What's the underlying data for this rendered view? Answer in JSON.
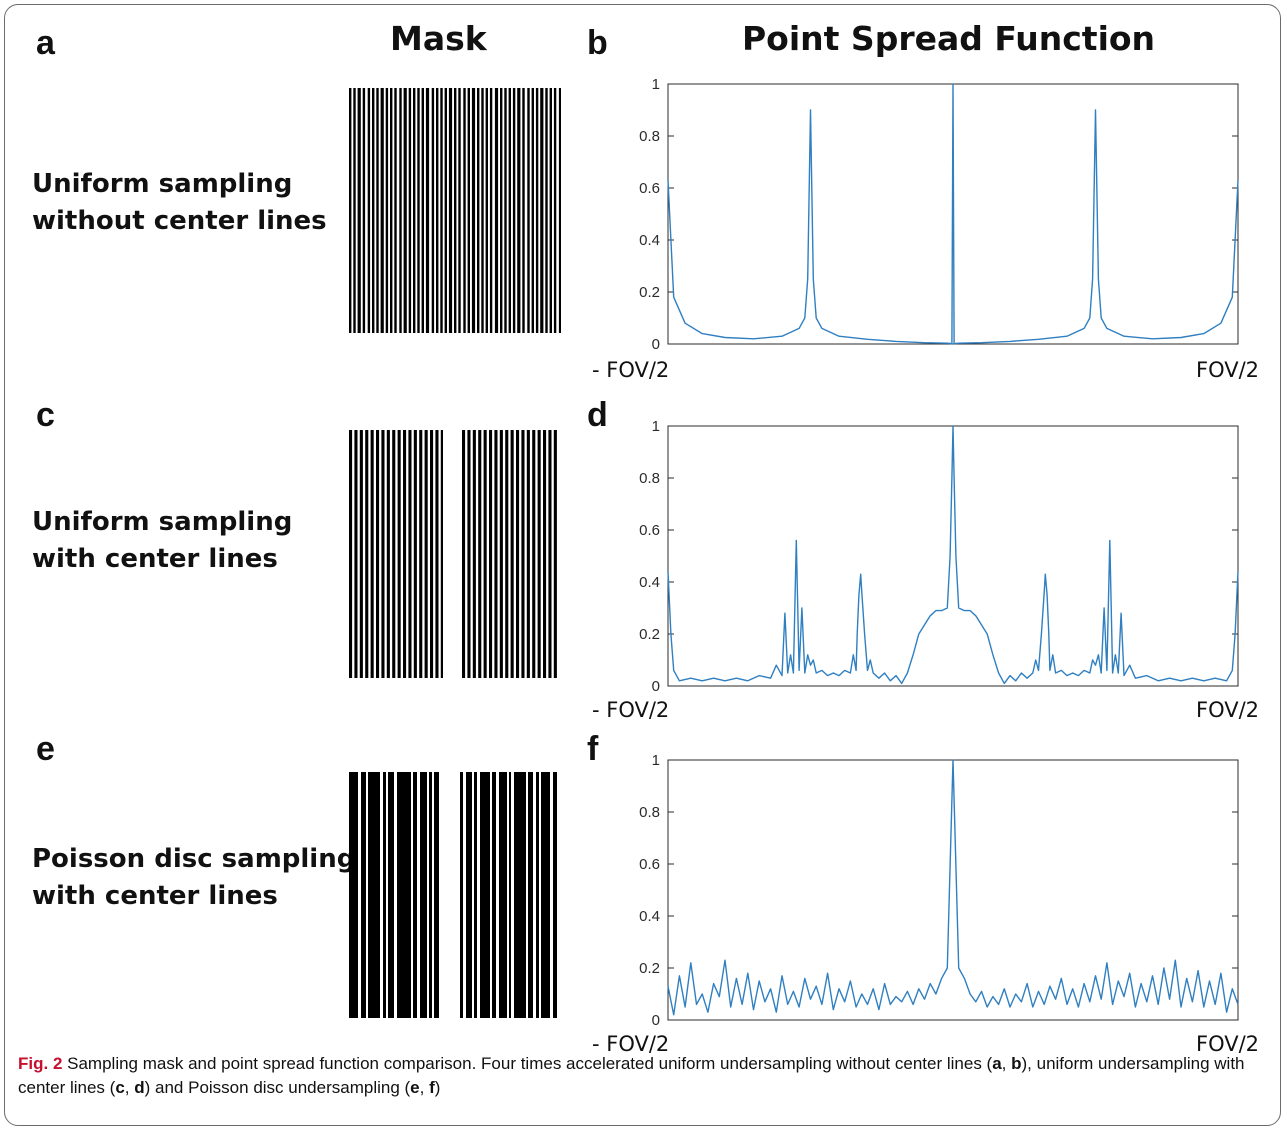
{
  "figure": {
    "column_headers": {
      "mask": "Mask",
      "psf": "Point Spread Function"
    },
    "panel_letters": [
      "a",
      "b",
      "c",
      "d",
      "e",
      "f"
    ],
    "rows": [
      {
        "label_line1": "Uniform sampling",
        "label_line2": "without center lines"
      },
      {
        "label_line1": "Uniform sampling",
        "label_line2": "with center lines"
      },
      {
        "label_line1": "Poisson disc sampling",
        "label_line2": "with center lines"
      }
    ],
    "x_left_label": "- FOV/2",
    "x_right_label": "FOV/2",
    "line_color": "#2f7fc1"
  },
  "caption": {
    "fig_label": "Fig. 2",
    "text_1": " Sampling mask and point spread function comparison. Four times accelerated uniform undersampling without center lines (",
    "a": "a",
    "sep1": ", ",
    "b": "b",
    "text_2": "), uniform undersampling with center lines (",
    "c": "c",
    "sep2": ", ",
    "d": "d",
    "text_3": ") and Poisson disc undersampling (",
    "e": "e",
    "sep3": ", ",
    "f": "f",
    "text_4": ")"
  },
  "chart_data": [
    {
      "type": "line",
      "panel": "b",
      "xlim": [
        -0.5,
        0.5
      ],
      "ylim": [
        0,
        1
      ],
      "yticks": [
        0,
        0.2,
        0.4,
        0.6,
        0.8,
        1
      ],
      "ytick_labels": [
        "0",
        "0.2",
        "0.4",
        "0.6",
        "0.8",
        "1"
      ],
      "series": [
        {
          "x": [
            -0.5,
            -0.49,
            -0.47,
            -0.44,
            -0.4,
            -0.35,
            -0.3,
            -0.27,
            -0.26,
            -0.255,
            -0.25,
            -0.245,
            -0.24,
            -0.23,
            -0.2,
            -0.15,
            -0.1,
            -0.05,
            -0.01,
            -0.004,
            -0.002,
            0,
            0.002,
            0.004,
            0.01,
            0.05,
            0.1,
            0.15,
            0.2,
            0.23,
            0.24,
            0.245,
            0.25,
            0.255,
            0.26,
            0.27,
            0.3,
            0.35,
            0.4,
            0.44,
            0.47,
            0.49,
            0.5
          ],
          "y": [
            0.63,
            0.18,
            0.08,
            0.04,
            0.025,
            0.02,
            0.03,
            0.06,
            0.1,
            0.25,
            0.9,
            0.25,
            0.1,
            0.06,
            0.03,
            0.018,
            0.01,
            0.005,
            0.003,
            0.002,
            0,
            1,
            0,
            0.002,
            0.003,
            0.005,
            0.01,
            0.018,
            0.03,
            0.06,
            0.1,
            0.25,
            0.9,
            0.25,
            0.1,
            0.06,
            0.03,
            0.02,
            0.025,
            0.04,
            0.08,
            0.18,
            0.63
          ]
        }
      ]
    },
    {
      "type": "line",
      "panel": "d",
      "xlim": [
        -0.5,
        0.5
      ],
      "ylim": [
        0,
        1
      ],
      "yticks": [
        0,
        0.2,
        0.4,
        0.6,
        0.8,
        1
      ],
      "ytick_labels": [
        "0",
        "0.2",
        "0.4",
        "0.6",
        "0.8",
        "1"
      ],
      "series": [
        {
          "x": [
            -0.5,
            -0.495,
            -0.49,
            -0.48,
            -0.46,
            -0.44,
            -0.42,
            -0.4,
            -0.38,
            -0.36,
            -0.34,
            -0.32,
            -0.31,
            -0.3,
            -0.295,
            -0.29,
            -0.285,
            -0.28,
            -0.275,
            -0.27,
            -0.265,
            -0.26,
            -0.255,
            -0.25,
            -0.245,
            -0.24,
            -0.23,
            -0.22,
            -0.21,
            -0.2,
            -0.19,
            -0.18,
            -0.175,
            -0.17,
            -0.168,
            -0.165,
            -0.162,
            -0.16,
            -0.155,
            -0.15,
            -0.145,
            -0.14,
            -0.13,
            -0.12,
            -0.11,
            -0.1,
            -0.09,
            -0.08,
            -0.07,
            -0.06,
            -0.04,
            -0.03,
            -0.02,
            -0.01,
            -0.005,
            -0.002,
            0,
            0.002,
            0.005,
            0.01,
            0.02,
            0.03,
            0.04,
            0.06,
            0.07,
            0.08,
            0.09,
            0.1,
            0.11,
            0.12,
            0.13,
            0.14,
            0.145,
            0.15,
            0.155,
            0.16,
            0.162,
            0.165,
            0.168,
            0.17,
            0.175,
            0.18,
            0.19,
            0.2,
            0.21,
            0.22,
            0.23,
            0.24,
            0.245,
            0.25,
            0.255,
            0.26,
            0.265,
            0.27,
            0.275,
            0.28,
            0.285,
            0.29,
            0.295,
            0.3,
            0.31,
            0.32,
            0.34,
            0.36,
            0.38,
            0.4,
            0.42,
            0.44,
            0.46,
            0.48,
            0.49,
            0.495,
            0.5
          ],
          "y": [
            0.44,
            0.2,
            0.06,
            0.02,
            0.03,
            0.02,
            0.03,
            0.02,
            0.03,
            0.02,
            0.04,
            0.03,
            0.08,
            0.04,
            0.28,
            0.05,
            0.12,
            0.05,
            0.56,
            0.06,
            0.3,
            0.05,
            0.12,
            0.08,
            0.1,
            0.05,
            0.06,
            0.04,
            0.05,
            0.04,
            0.06,
            0.05,
            0.12,
            0.06,
            0.2,
            0.35,
            0.43,
            0.36,
            0.2,
            0.06,
            0.1,
            0.05,
            0.03,
            0.05,
            0.02,
            0.04,
            0.01,
            0.05,
            0.12,
            0.2,
            0.27,
            0.29,
            0.29,
            0.3,
            0.5,
            0.8,
            1,
            0.8,
            0.5,
            0.3,
            0.29,
            0.29,
            0.27,
            0.2,
            0.12,
            0.05,
            0.01,
            0.04,
            0.02,
            0.05,
            0.03,
            0.05,
            0.1,
            0.06,
            0.2,
            0.36,
            0.43,
            0.35,
            0.2,
            0.06,
            0.12,
            0.05,
            0.06,
            0.04,
            0.05,
            0.04,
            0.06,
            0.05,
            0.1,
            0.08,
            0.12,
            0.05,
            0.3,
            0.06,
            0.56,
            0.05,
            0.12,
            0.05,
            0.28,
            0.04,
            0.08,
            0.03,
            0.04,
            0.02,
            0.03,
            0.02,
            0.03,
            0.02,
            0.03,
            0.02,
            0.06,
            0.2,
            0.44
          ]
        }
      ]
    },
    {
      "type": "line",
      "panel": "f",
      "xlim": [
        -0.5,
        0.5
      ],
      "ylim": [
        0,
        1
      ],
      "yticks": [
        0,
        0.2,
        0.4,
        0.6,
        0.8,
        1
      ],
      "ytick_labels": [
        "0",
        "0.2",
        "0.4",
        "0.6",
        "0.8",
        "1"
      ],
      "series": [
        {
          "x": [
            -0.5,
            -0.49,
            -0.48,
            -0.47,
            -0.46,
            -0.45,
            -0.44,
            -0.43,
            -0.42,
            -0.41,
            -0.4,
            -0.39,
            -0.38,
            -0.37,
            -0.36,
            -0.35,
            -0.34,
            -0.33,
            -0.32,
            -0.31,
            -0.3,
            -0.29,
            -0.28,
            -0.27,
            -0.26,
            -0.25,
            -0.24,
            -0.23,
            -0.22,
            -0.21,
            -0.2,
            -0.19,
            -0.18,
            -0.17,
            -0.16,
            -0.15,
            -0.14,
            -0.13,
            -0.12,
            -0.11,
            -0.1,
            -0.09,
            -0.08,
            -0.07,
            -0.06,
            -0.05,
            -0.04,
            -0.03,
            -0.02,
            -0.01,
            0,
            0.01,
            0.02,
            0.03,
            0.04,
            0.05,
            0.06,
            0.07,
            0.08,
            0.09,
            0.1,
            0.11,
            0.12,
            0.13,
            0.14,
            0.15,
            0.16,
            0.17,
            0.18,
            0.19,
            0.2,
            0.21,
            0.22,
            0.23,
            0.24,
            0.25,
            0.26,
            0.27,
            0.28,
            0.29,
            0.3,
            0.31,
            0.32,
            0.33,
            0.34,
            0.35,
            0.36,
            0.37,
            0.38,
            0.39,
            0.4,
            0.41,
            0.42,
            0.43,
            0.44,
            0.45,
            0.46,
            0.47,
            0.48,
            0.49,
            0.5
          ],
          "y": [
            0.13,
            0.02,
            0.17,
            0.05,
            0.22,
            0.06,
            0.1,
            0.03,
            0.14,
            0.09,
            0.23,
            0.05,
            0.16,
            0.06,
            0.18,
            0.04,
            0.15,
            0.07,
            0.12,
            0.03,
            0.17,
            0.06,
            0.11,
            0.05,
            0.16,
            0.08,
            0.13,
            0.06,
            0.18,
            0.04,
            0.12,
            0.07,
            0.15,
            0.05,
            0.1,
            0.06,
            0.12,
            0.04,
            0.14,
            0.06,
            0.09,
            0.07,
            0.11,
            0.06,
            0.12,
            0.08,
            0.14,
            0.1,
            0.16,
            0.2,
            1,
            0.2,
            0.16,
            0.1,
            0.07,
            0.11,
            0.05,
            0.09,
            0.06,
            0.12,
            0.05,
            0.1,
            0.07,
            0.14,
            0.05,
            0.11,
            0.06,
            0.13,
            0.08,
            0.16,
            0.06,
            0.12,
            0.05,
            0.14,
            0.07,
            0.17,
            0.08,
            0.22,
            0.06,
            0.15,
            0.09,
            0.18,
            0.05,
            0.14,
            0.07,
            0.17,
            0.06,
            0.2,
            0.08,
            0.23,
            0.05,
            0.16,
            0.07,
            0.19,
            0.05,
            0.15,
            0.06,
            0.18,
            0.03,
            0.12,
            0.06
          ]
        }
      ]
    }
  ]
}
